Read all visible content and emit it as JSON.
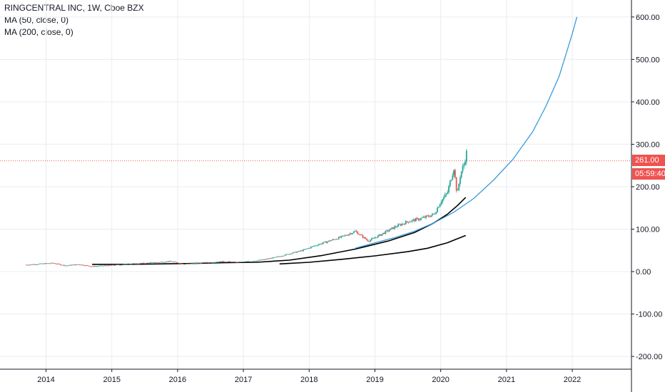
{
  "header": {
    "title": "RINGCENTRAL INC, 1W, Cboe BZX",
    "ma50": "MA (50, close, 0)",
    "ma200": "MA (200, close, 0)"
  },
  "price_tags": {
    "last_price": "261.00",
    "countdown": "05:59:40",
    "color": "#ef5350"
  },
  "colors": {
    "up": "#26a69a",
    "down": "#ef5350",
    "ma": "#000000",
    "curve": "#3a9bd9",
    "grid": "#e9ecf0",
    "price_line": "#ef5350"
  },
  "chart_data": {
    "type": "candlestick",
    "x_ticks": [
      "2014",
      "2015",
      "2016",
      "2017",
      "2018",
      "2019",
      "2020",
      "2021",
      "2022"
    ],
    "y_ticks": [
      "600.00",
      "500.00",
      "400.00",
      "300.00",
      "200.00",
      "100.00",
      "0.00",
      "-100.00",
      "-200.00"
    ],
    "ylim": [
      -230,
      640
    ],
    "xlim": [
      2013.3,
      2022.9
    ],
    "last_price": 261.0,
    "price_series": {
      "x": [
        2013.7,
        2013.9,
        2014.1,
        2014.3,
        2014.5,
        2014.7,
        2014.9,
        2015.1,
        2015.3,
        2015.5,
        2015.7,
        2015.9,
        2016.1,
        2016.3,
        2016.5,
        2016.7,
        2016.9,
        2017.1,
        2017.3,
        2017.5,
        2017.7,
        2017.9,
        2018.1,
        2018.3,
        2018.5,
        2018.7,
        2018.9,
        2019.1,
        2019.3,
        2019.5,
        2019.7,
        2019.9,
        2020.0,
        2020.1,
        2020.15,
        2020.2,
        2020.25,
        2020.3,
        2020.35,
        2020.4
      ],
      "y": [
        16,
        18,
        20,
        14,
        17,
        12,
        14,
        16,
        18,
        20,
        22,
        24,
        18,
        20,
        22,
        24,
        22,
        24,
        28,
        34,
        42,
        50,
        62,
        72,
        82,
        95,
        72,
        88,
        105,
        118,
        125,
        135,
        165,
        185,
        215,
        245,
        180,
        230,
        250,
        285
      ]
    },
    "ma50": {
      "x": [
        2014.7,
        2015.2,
        2015.7,
        2016.2,
        2016.7,
        2017.2,
        2017.7,
        2018.2,
        2018.7,
        2019.2,
        2019.6,
        2019.9,
        2020.1,
        2020.25,
        2020.38
      ],
      "y": [
        17,
        17,
        18,
        19,
        21,
        22,
        27,
        38,
        53,
        72,
        92,
        115,
        135,
        155,
        175
      ]
    },
    "ma200": {
      "x": [
        2017.55,
        2018.0,
        2018.5,
        2019.0,
        2019.5,
        2019.8,
        2020.1,
        2020.38
      ],
      "y": [
        18,
        22,
        29,
        37,
        47,
        55,
        68,
        85
      ]
    },
    "curve": {
      "x": [
        2018.7,
        2019.0,
        2019.3,
        2019.6,
        2019.9,
        2020.2,
        2020.5,
        2020.8,
        2021.1,
        2021.4,
        2021.6,
        2021.8,
        2022.0,
        2022.07
      ],
      "y": [
        55,
        68,
        80,
        95,
        115,
        140,
        172,
        215,
        265,
        330,
        390,
        460,
        560,
        600
      ]
    }
  }
}
